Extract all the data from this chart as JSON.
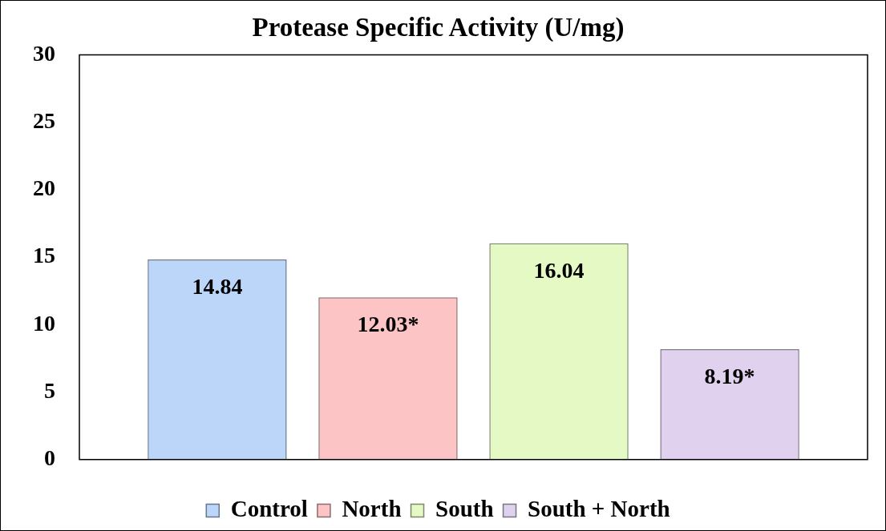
{
  "chart_data": {
    "type": "bar",
    "title": "Protease Specific Activity (U/mg)",
    "categories": [
      null
    ],
    "series": [
      {
        "name": "Control",
        "color": "#bcd6fa",
        "values": [
          14.84
        ],
        "value_labels": [
          "14.84"
        ]
      },
      {
        "name": "North",
        "color": "#fcc4c4",
        "values": [
          12.03
        ],
        "value_labels": [
          "12.03*"
        ]
      },
      {
        "name": "South",
        "color": "#e4f9c4",
        "values": [
          16.04
        ],
        "value_labels": [
          "16.04"
        ]
      },
      {
        "name": "South + North",
        "color": "#e0d2ee",
        "values": [
          8.19
        ],
        "value_labels": [
          "8.19*"
        ]
      }
    ],
    "ylim": [
      0,
      30
    ],
    "yticks": [
      0,
      5,
      10,
      15,
      20,
      25,
      30
    ],
    "grid": false,
    "legend": "bottom"
  }
}
